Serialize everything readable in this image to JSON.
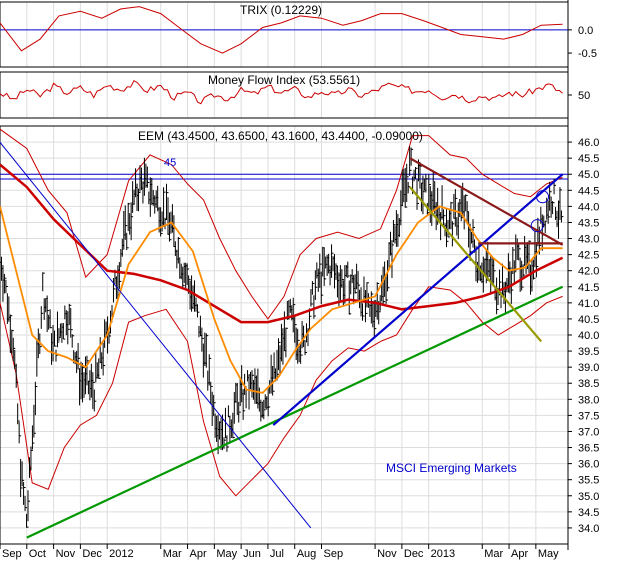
{
  "chart_data": {
    "type": "line",
    "colors": {
      "price_bar": "#000000",
      "indicator": "#cc0000",
      "bollinger": "#cc0000",
      "ma_short": "#ff8c00",
      "ma_long": "#cc0000",
      "trend_blue": "#0000cc",
      "trend_green": "#009900",
      "trend_olive": "#999900",
      "trend_brown": "#8b1a1a",
      "grid": "#dddddd",
      "reference_line": "#0000cc"
    },
    "panels": [
      {
        "id": "trix",
        "title": "TRIX (0.12229)",
        "y_ticks": [
          "0.0",
          "-0.5"
        ],
        "reference_value": "0.0",
        "ylim": [
          -0.8,
          0.6
        ]
      },
      {
        "id": "mfi",
        "title": "Money Flow Index (53.5561)",
        "y_ticks": [
          "50"
        ],
        "ylim": [
          0,
          100
        ]
      },
      {
        "id": "price",
        "title": "EEM (43.4500, 43.6500, 43.1600, 43.4400, -0.09000)",
        "ylim": [
          33.5,
          46.5
        ],
        "y_ticks": [
          "46.0",
          "45.5",
          "45.0",
          "44.5",
          "44.0",
          "43.5",
          "43.0",
          "42.5",
          "42.0",
          "41.5",
          "41.0",
          "40.5",
          "40.0",
          "39.5",
          "39.0",
          "38.5",
          "38.0",
          "37.5",
          "37.0",
          "36.5",
          "36.0",
          "35.5",
          "35.0",
          "34.5",
          "34.0"
        ],
        "annotations": [
          {
            "text": "45",
            "y": 45.0
          },
          {
            "text": "MSCI Emerging Markets"
          }
        ],
        "trendlines": [
          {
            "name": "long-term-support",
            "color": "trend_green",
            "from": {
              "x": 1,
              "y": 33.7
            },
            "to": {
              "x": 21,
              "y": 41.5
            }
          },
          {
            "name": "mid-term-support",
            "color": "trend_blue",
            "from": {
              "x": 10.2,
              "y": 37.2
            },
            "to": {
              "x": 21,
              "y": 45.0
            }
          },
          {
            "name": "descending-channel-top",
            "color": "trend_brown",
            "from": {
              "x": 15.3,
              "y": 45.5
            },
            "to": {
              "x": 21,
              "y": 42.8
            }
          },
          {
            "name": "descending-channel-bottom",
            "color": "trend_olive",
            "from": {
              "x": 15.3,
              "y": 44.6
            },
            "to": {
              "x": 20.2,
              "y": 39.8
            }
          },
          {
            "name": "old-downtrend",
            "color": "trend_blue",
            "from": {
              "x": -0.2,
              "y": 46.2
            },
            "to": {
              "x": 11.6,
              "y": 34.0
            }
          },
          {
            "name": "short-support",
            "color": "trend_brown",
            "from": {
              "x": 17.9,
              "y": 42.85
            },
            "to": {
              "x": 21,
              "y": 42.85
            }
          }
        ]
      }
    ],
    "x_labels": [
      "Sep",
      "Oct",
      "Nov",
      "Dec",
      "2012",
      "Mar",
      "Apr",
      "May",
      "Jun",
      "Jul",
      "Aug",
      "Sep",
      "Nov",
      "Dec",
      "2013",
      "Mar",
      "Apr",
      "May"
    ],
    "x_label_index": [
      0,
      1,
      2,
      3,
      4,
      6,
      7,
      8,
      9,
      10,
      11,
      12,
      14,
      15,
      16,
      18,
      19,
      20
    ],
    "series_price": [
      {
        "x": 0,
        "y": 42.6
      },
      {
        "x": 0.5,
        "y": 39.8
      },
      {
        "x": 0.8,
        "y": 35.5
      },
      {
        "x": 1.0,
        "y": 34.2
      },
      {
        "x": 1.3,
        "y": 38.0
      },
      {
        "x": 1.6,
        "y": 41.5
      },
      {
        "x": 2.0,
        "y": 39.5
      },
      {
        "x": 2.5,
        "y": 40.8
      },
      {
        "x": 3.0,
        "y": 38.6
      },
      {
        "x": 3.5,
        "y": 38.3
      },
      {
        "x": 4.0,
        "y": 40.0
      },
      {
        "x": 4.5,
        "y": 42.5
      },
      {
        "x": 5.0,
        "y": 44.2
      },
      {
        "x": 5.3,
        "y": 44.8
      },
      {
        "x": 5.8,
        "y": 44.2
      },
      {
        "x": 6.3,
        "y": 43.6
      },
      {
        "x": 6.8,
        "y": 42.2
      },
      {
        "x": 7.2,
        "y": 41.2
      },
      {
        "x": 7.6,
        "y": 39.6
      },
      {
        "x": 8.0,
        "y": 37.6
      },
      {
        "x": 8.4,
        "y": 36.9
      },
      {
        "x": 8.8,
        "y": 37.8
      },
      {
        "x": 9.3,
        "y": 38.4
      },
      {
        "x": 9.8,
        "y": 37.9
      },
      {
        "x": 10.3,
        "y": 38.8
      },
      {
        "x": 10.8,
        "y": 40.6
      },
      {
        "x": 11.3,
        "y": 39.6
      },
      {
        "x": 11.8,
        "y": 41.6
      },
      {
        "x": 12.3,
        "y": 42.2
      },
      {
        "x": 12.8,
        "y": 41.6
      },
      {
        "x": 13.3,
        "y": 41.6
      },
      {
        "x": 13.8,
        "y": 40.6
      },
      {
        "x": 14.3,
        "y": 41.4
      },
      {
        "x": 14.8,
        "y": 43.4
      },
      {
        "x": 15.3,
        "y": 45.2
      },
      {
        "x": 15.8,
        "y": 44.4
      },
      {
        "x": 16.3,
        "y": 44.0
      },
      {
        "x": 16.8,
        "y": 43.4
      },
      {
        "x": 17.3,
        "y": 44.0
      },
      {
        "x": 17.8,
        "y": 42.4
      },
      {
        "x": 18.3,
        "y": 41.9
      },
      {
        "x": 18.8,
        "y": 41.3
      },
      {
        "x": 19.3,
        "y": 42.4
      },
      {
        "x": 19.8,
        "y": 42.0
      },
      {
        "x": 20.2,
        "y": 43.4
      },
      {
        "x": 20.6,
        "y": 44.4
      },
      {
        "x": 21.0,
        "y": 43.4
      }
    ],
    "series_ma_short": [
      {
        "x": 0,
        "y": 44.0
      },
      {
        "x": 0.6,
        "y": 42.0
      },
      {
        "x": 1.2,
        "y": 40.0
      },
      {
        "x": 1.8,
        "y": 39.5
      },
      {
        "x": 2.5,
        "y": 39.3
      },
      {
        "x": 3.2,
        "y": 39.0
      },
      {
        "x": 4.0,
        "y": 40.0
      },
      {
        "x": 4.8,
        "y": 42.2
      },
      {
        "x": 5.6,
        "y": 43.2
      },
      {
        "x": 6.4,
        "y": 43.5
      },
      {
        "x": 7.2,
        "y": 42.6
      },
      {
        "x": 8.0,
        "y": 40.5
      },
      {
        "x": 8.6,
        "y": 39.2
      },
      {
        "x": 9.2,
        "y": 38.3
      },
      {
        "x": 9.8,
        "y": 38.2
      },
      {
        "x": 10.4,
        "y": 38.7
      },
      {
        "x": 11.0,
        "y": 39.5
      },
      {
        "x": 11.6,
        "y": 40.2
      },
      {
        "x": 12.4,
        "y": 40.8
      },
      {
        "x": 13.2,
        "y": 41.0
      },
      {
        "x": 14.0,
        "y": 41.2
      },
      {
        "x": 14.8,
        "y": 42.5
      },
      {
        "x": 15.6,
        "y": 43.5
      },
      {
        "x": 16.4,
        "y": 44.0
      },
      {
        "x": 17.2,
        "y": 43.8
      },
      {
        "x": 17.8,
        "y": 43.0
      },
      {
        "x": 18.4,
        "y": 42.4
      },
      {
        "x": 19.0,
        "y": 42.0
      },
      {
        "x": 19.6,
        "y": 42.1
      },
      {
        "x": 20.2,
        "y": 42.7
      },
      {
        "x": 21.0,
        "y": 42.7
      }
    ],
    "series_ma_long": [
      {
        "x": 0,
        "y": 45.3
      },
      {
        "x": 1.0,
        "y": 44.6
      },
      {
        "x": 2.0,
        "y": 43.6
      },
      {
        "x": 3.0,
        "y": 42.8
      },
      {
        "x": 4.0,
        "y": 42.0
      },
      {
        "x": 5.0,
        "y": 41.9
      },
      {
        "x": 6.0,
        "y": 41.7
      },
      {
        "x": 7.0,
        "y": 41.4
      },
      {
        "x": 8.0,
        "y": 40.9
      },
      {
        "x": 9.0,
        "y": 40.4
      },
      {
        "x": 10.0,
        "y": 40.4
      },
      {
        "x": 11.0,
        "y": 40.6
      },
      {
        "x": 12.0,
        "y": 40.9
      },
      {
        "x": 13.0,
        "y": 41.1
      },
      {
        "x": 14.0,
        "y": 41.0
      },
      {
        "x": 15.0,
        "y": 40.8
      },
      {
        "x": 16.0,
        "y": 40.9
      },
      {
        "x": 17.0,
        "y": 41.0
      },
      {
        "x": 18.0,
        "y": 41.2
      },
      {
        "x": 19.0,
        "y": 41.5
      },
      {
        "x": 20.0,
        "y": 42.0
      },
      {
        "x": 21.0,
        "y": 42.4
      }
    ],
    "series_bb_upper": [
      {
        "x": 0,
        "y": 46.4
      },
      {
        "x": 1.0,
        "y": 45.8
      },
      {
        "x": 1.8,
        "y": 44.5
      },
      {
        "x": 2.5,
        "y": 43.8
      },
      {
        "x": 3.2,
        "y": 41.8
      },
      {
        "x": 4.0,
        "y": 42.5
      },
      {
        "x": 4.8,
        "y": 44.8
      },
      {
        "x": 5.6,
        "y": 45.6
      },
      {
        "x": 6.4,
        "y": 45.3
      },
      {
        "x": 7.0,
        "y": 44.7
      },
      {
        "x": 7.6,
        "y": 44.2
      },
      {
        "x": 8.2,
        "y": 43.0
      },
      {
        "x": 8.8,
        "y": 42.0
      },
      {
        "x": 9.4,
        "y": 41.2
      },
      {
        "x": 10.0,
        "y": 40.5
      },
      {
        "x": 10.6,
        "y": 41.2
      },
      {
        "x": 11.2,
        "y": 42.5
      },
      {
        "x": 11.8,
        "y": 43.0
      },
      {
        "x": 12.6,
        "y": 43.2
      },
      {
        "x": 13.4,
        "y": 43.0
      },
      {
        "x": 14.2,
        "y": 43.3
      },
      {
        "x": 14.8,
        "y": 44.5
      },
      {
        "x": 15.4,
        "y": 46.2
      },
      {
        "x": 16.0,
        "y": 46.2
      },
      {
        "x": 16.8,
        "y": 45.6
      },
      {
        "x": 17.4,
        "y": 45.5
      },
      {
        "x": 18.0,
        "y": 45.0
      },
      {
        "x": 18.6,
        "y": 44.7
      },
      {
        "x": 19.2,
        "y": 44.4
      },
      {
        "x": 19.8,
        "y": 44.3
      },
      {
        "x": 20.4,
        "y": 44.7
      },
      {
        "x": 21.0,
        "y": 44.9
      }
    ],
    "series_bb_lower": [
      {
        "x": 0,
        "y": 41.0
      },
      {
        "x": 0.6,
        "y": 38.8
      },
      {
        "x": 1.2,
        "y": 35.4
      },
      {
        "x": 1.8,
        "y": 35.2
      },
      {
        "x": 2.4,
        "y": 36.5
      },
      {
        "x": 3.0,
        "y": 37.2
      },
      {
        "x": 3.6,
        "y": 37.5
      },
      {
        "x": 4.2,
        "y": 38.5
      },
      {
        "x": 4.8,
        "y": 40.4
      },
      {
        "x": 5.4,
        "y": 40.6
      },
      {
        "x": 6.2,
        "y": 40.8
      },
      {
        "x": 7.0,
        "y": 39.8
      },
      {
        "x": 7.6,
        "y": 37.3
      },
      {
        "x": 8.2,
        "y": 35.6
      },
      {
        "x": 8.8,
        "y": 35.0
      },
      {
        "x": 9.4,
        "y": 35.5
      },
      {
        "x": 10.0,
        "y": 36.0
      },
      {
        "x": 10.6,
        "y": 36.8
      },
      {
        "x": 11.2,
        "y": 37.5
      },
      {
        "x": 11.8,
        "y": 38.6
      },
      {
        "x": 12.4,
        "y": 39.2
      },
      {
        "x": 13.0,
        "y": 39.6
      },
      {
        "x": 13.6,
        "y": 39.5
      },
      {
        "x": 14.2,
        "y": 39.8
      },
      {
        "x": 14.8,
        "y": 40.0
      },
      {
        "x": 15.4,
        "y": 40.8
      },
      {
        "x": 16.0,
        "y": 41.5
      },
      {
        "x": 16.8,
        "y": 41.4
      },
      {
        "x": 17.4,
        "y": 41.0
      },
      {
        "x": 18.0,
        "y": 40.4
      },
      {
        "x": 18.6,
        "y": 40.0
      },
      {
        "x": 19.2,
        "y": 40.3
      },
      {
        "x": 19.8,
        "y": 40.6
      },
      {
        "x": 20.4,
        "y": 41.0
      },
      {
        "x": 21.0,
        "y": 41.2
      }
    ],
    "series_trix": [
      {
        "x": 0,
        "y": 0.15
      },
      {
        "x": 0.8,
        "y": -0.45
      },
      {
        "x": 1.5,
        "y": -0.2
      },
      {
        "x": 2.2,
        "y": 0.3
      },
      {
        "x": 3.0,
        "y": 0.4
      },
      {
        "x": 3.8,
        "y": 0.25
      },
      {
        "x": 4.5,
        "y": 0.45
      },
      {
        "x": 5.2,
        "y": 0.5
      },
      {
        "x": 6.0,
        "y": 0.35
      },
      {
        "x": 6.8,
        "y": 0.0
      },
      {
        "x": 7.5,
        "y": -0.3
      },
      {
        "x": 8.3,
        "y": -0.5
      },
      {
        "x": 9.0,
        "y": -0.3
      },
      {
        "x": 9.8,
        "y": 0.05
      },
      {
        "x": 10.5,
        "y": 0.15
      },
      {
        "x": 11.2,
        "y": 0.3
      },
      {
        "x": 12.0,
        "y": 0.25
      },
      {
        "x": 12.8,
        "y": 0.1
      },
      {
        "x": 13.5,
        "y": 0.2
      },
      {
        "x": 14.2,
        "y": 0.35
      },
      {
        "x": 15.0,
        "y": 0.35
      },
      {
        "x": 15.8,
        "y": 0.2
      },
      {
        "x": 16.5,
        "y": 0.05
      },
      {
        "x": 17.2,
        "y": -0.1
      },
      {
        "x": 18.0,
        "y": -0.15
      },
      {
        "x": 18.8,
        "y": -0.2
      },
      {
        "x": 19.5,
        "y": -0.1
      },
      {
        "x": 20.2,
        "y": 0.1
      },
      {
        "x": 21.0,
        "y": 0.12
      }
    ],
    "series_mfi": [
      {
        "x": 0,
        "y": 55
      },
      {
        "x": 0.5,
        "y": 40
      },
      {
        "x": 1.0,
        "y": 62
      },
      {
        "x": 1.5,
        "y": 48
      },
      {
        "x": 2.0,
        "y": 70
      },
      {
        "x": 2.5,
        "y": 55
      },
      {
        "x": 3.0,
        "y": 66
      },
      {
        "x": 3.5,
        "y": 50
      },
      {
        "x": 4.0,
        "y": 72
      },
      {
        "x": 4.5,
        "y": 62
      },
      {
        "x": 5.0,
        "y": 75
      },
      {
        "x": 5.5,
        "y": 60
      },
      {
        "x": 6.0,
        "y": 70
      },
      {
        "x": 6.5,
        "y": 45
      },
      {
        "x": 7.0,
        "y": 55
      },
      {
        "x": 7.5,
        "y": 35
      },
      {
        "x": 8.0,
        "y": 50
      },
      {
        "x": 8.5,
        "y": 42
      },
      {
        "x": 9.0,
        "y": 60
      },
      {
        "x": 9.5,
        "y": 52
      },
      {
        "x": 10.0,
        "y": 68
      },
      {
        "x": 10.5,
        "y": 55
      },
      {
        "x": 11.0,
        "y": 63
      },
      {
        "x": 11.5,
        "y": 45
      },
      {
        "x": 12.0,
        "y": 58
      },
      {
        "x": 12.5,
        "y": 50
      },
      {
        "x": 13.0,
        "y": 62
      },
      {
        "x": 13.5,
        "y": 48
      },
      {
        "x": 14.0,
        "y": 60
      },
      {
        "x": 14.5,
        "y": 72
      },
      {
        "x": 15.0,
        "y": 66
      },
      {
        "x": 15.5,
        "y": 58
      },
      {
        "x": 16.0,
        "y": 62
      },
      {
        "x": 16.5,
        "y": 45
      },
      {
        "x": 17.0,
        "y": 52
      },
      {
        "x": 17.5,
        "y": 40
      },
      {
        "x": 18.0,
        "y": 48
      },
      {
        "x": 18.5,
        "y": 42
      },
      {
        "x": 19.0,
        "y": 55
      },
      {
        "x": 19.5,
        "y": 50
      },
      {
        "x": 20.0,
        "y": 62
      },
      {
        "x": 20.5,
        "y": 72
      },
      {
        "x": 21.0,
        "y": 54
      }
    ],
    "xlim": [
      0,
      21.2
    ],
    "grid": true
  }
}
